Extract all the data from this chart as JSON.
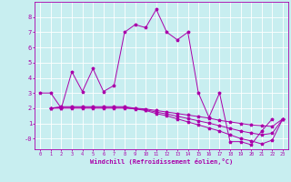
{
  "xlabel": "Windchill (Refroidissement éolien,°C)",
  "background_color": "#c8eef0",
  "grid_color": "#ffffff",
  "line_color": "#aa00aa",
  "xlim": [
    -0.5,
    23.5
  ],
  "ylim": [
    -0.7,
    9.0
  ],
  "yticks": [
    0,
    1,
    2,
    3,
    4,
    5,
    6,
    7,
    8
  ],
  "ytick_labels": [
    "-0",
    "1",
    "2",
    "3",
    "4",
    "5",
    "6",
    "7",
    "8"
  ],
  "xticks": [
    0,
    1,
    2,
    3,
    4,
    5,
    6,
    7,
    8,
    9,
    10,
    11,
    12,
    13,
    14,
    15,
    16,
    17,
    18,
    19,
    20,
    21,
    22,
    23
  ],
  "series1_x": [
    0,
    1,
    2,
    3,
    4,
    5,
    6,
    7,
    8,
    9,
    10,
    11,
    12,
    13,
    14,
    15,
    16,
    17,
    18,
    19,
    20,
    21,
    22
  ],
  "series1_y": [
    3.0,
    3.0,
    2.0,
    4.4,
    3.1,
    4.6,
    3.1,
    3.5,
    7.0,
    7.5,
    7.3,
    8.5,
    7.0,
    6.5,
    7.0,
    3.0,
    1.4,
    3.0,
    -0.2,
    -0.2,
    -0.4,
    0.5,
    1.3
  ],
  "series2_x": [
    1,
    2,
    3,
    4,
    5,
    6,
    7,
    8,
    9,
    10,
    11,
    12,
    13,
    14,
    15,
    16,
    17,
    18,
    19,
    20,
    21,
    22,
    23
  ],
  "series2_y": [
    2.0,
    2.1,
    2.1,
    2.1,
    2.1,
    2.1,
    2.1,
    2.1,
    2.0,
    1.95,
    1.85,
    1.75,
    1.65,
    1.55,
    1.45,
    1.35,
    1.2,
    1.1,
    1.0,
    0.9,
    0.85,
    0.8,
    1.3
  ],
  "series3_x": [
    1,
    2,
    3,
    4,
    5,
    6,
    7,
    8,
    9,
    10,
    11,
    12,
    13,
    14,
    15,
    16,
    17,
    18,
    19,
    20,
    21,
    22,
    23
  ],
  "series3_y": [
    2.0,
    2.0,
    2.0,
    2.0,
    2.0,
    2.0,
    2.0,
    2.0,
    1.95,
    1.85,
    1.65,
    1.5,
    1.3,
    1.1,
    0.9,
    0.7,
    0.5,
    0.25,
    0.0,
    -0.15,
    -0.35,
    -0.1,
    1.3
  ],
  "series4_x": [
    1,
    2,
    3,
    4,
    5,
    6,
    7,
    8,
    9,
    10,
    11,
    12,
    13,
    14,
    15,
    16,
    17,
    18,
    19,
    20,
    21,
    22,
    23
  ],
  "series4_y": [
    2.0,
    2.05,
    2.05,
    2.05,
    2.05,
    2.05,
    2.05,
    2.05,
    1.97,
    1.9,
    1.75,
    1.62,
    1.47,
    1.32,
    1.17,
    1.02,
    0.85,
    0.67,
    0.5,
    0.37,
    0.25,
    0.35,
    1.3
  ]
}
